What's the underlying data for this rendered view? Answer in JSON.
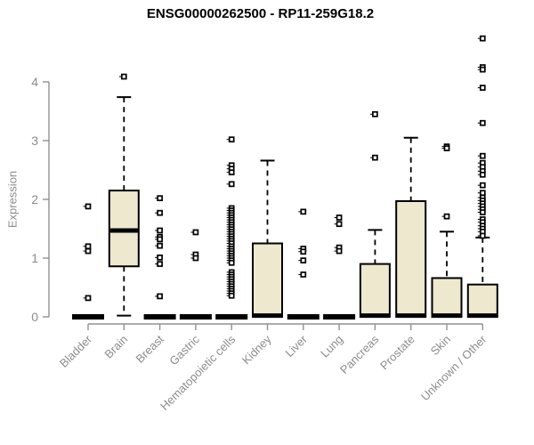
{
  "title": "ENSG00000262500 - RP11-259G18.2",
  "y_axis": {
    "label": "Expression"
  },
  "chart_data": {
    "type": "boxplot",
    "title": "ENSG00000262500 - RP11-259G18.2",
    "xlabel": "",
    "ylabel": "Expression",
    "ylim": [
      0,
      4.8
    ],
    "yticks": [
      0,
      1,
      2,
      3,
      4
    ],
    "grid": false,
    "legend": "none",
    "categories": [
      "Bladder",
      "Brain",
      "Breast",
      "Gastric",
      "Hematopoietic cells",
      "Kidney",
      "Liver",
      "Lung",
      "Pancreas",
      "Prostate",
      "Skin",
      "Unknown / Other"
    ],
    "series": [
      {
        "category": "Bladder",
        "collapsed": true,
        "q1": 0,
        "median": 0,
        "q3": 0,
        "whisker_low": 0,
        "whisker_high": 0,
        "outliers": [
          1.88,
          1.2,
          1.12,
          0.32
        ]
      },
      {
        "category": "Brain",
        "collapsed": false,
        "q1": 0.86,
        "median": 1.47,
        "q3": 2.15,
        "whisker_low": 0.02,
        "whisker_high": 3.74,
        "outliers": [
          4.09
        ]
      },
      {
        "category": "Breast",
        "collapsed": true,
        "q1": 0,
        "median": 0,
        "q3": 0,
        "whisker_low": 0,
        "whisker_high": 0,
        "outliers": [
          2.02,
          1.77,
          1.47,
          1.36,
          1.32,
          1.21,
          1.01,
          0.9,
          0.35
        ]
      },
      {
        "category": "Gastric",
        "collapsed": true,
        "q1": 0,
        "median": 0,
        "q3": 0,
        "whisker_low": 0,
        "whisker_high": 0,
        "outliers": [
          1.44,
          1.06,
          1.0
        ]
      },
      {
        "category": "Hematopoietic cells",
        "collapsed": true,
        "q1": 0,
        "median": 0,
        "q3": 0,
        "whisker_low": 0,
        "whisker_high": 0,
        "outliers": [
          3.02,
          2.58,
          2.52,
          2.46,
          2.26,
          1.85,
          1.81,
          1.77,
          1.73,
          1.69,
          1.65,
          1.61,
          1.57,
          1.53,
          1.49,
          1.45,
          1.41,
          1.37,
          1.33,
          1.29,
          1.25,
          1.2,
          1.16,
          1.12,
          1.08,
          1.04,
          1.0,
          0.96,
          0.92,
          0.76,
          0.72,
          0.68,
          0.64,
          0.6,
          0.56,
          0.52,
          0.48,
          0.44,
          0.4,
          0.36
        ]
      },
      {
        "category": "Kidney",
        "collapsed": false,
        "q1": 0,
        "median": 0.02,
        "q3": 1.25,
        "whisker_low": 0,
        "whisker_high": 2.66,
        "outliers": []
      },
      {
        "category": "Liver",
        "collapsed": true,
        "q1": 0,
        "median": 0,
        "q3": 0,
        "whisker_low": 0,
        "whisker_high": 0,
        "outliers": [
          1.79,
          1.16,
          1.11,
          0.96,
          0.72
        ]
      },
      {
        "category": "Lung",
        "collapsed": true,
        "q1": 0,
        "median": 0,
        "q3": 0,
        "whisker_low": 0,
        "whisker_high": 0,
        "outliers": [
          1.69,
          1.58,
          1.18,
          1.12
        ]
      },
      {
        "category": "Pancreas",
        "collapsed": false,
        "q1": 0,
        "median": 0.02,
        "q3": 0.9,
        "whisker_low": 0,
        "whisker_high": 1.48,
        "outliers": [
          3.45,
          2.71
        ]
      },
      {
        "category": "Prostate",
        "collapsed": false,
        "q1": 0,
        "median": 0.02,
        "q3": 1.97,
        "whisker_low": 0,
        "whisker_high": 3.05,
        "outliers": []
      },
      {
        "category": "Skin",
        "collapsed": false,
        "q1": 0,
        "median": 0.02,
        "q3": 0.66,
        "whisker_low": 0,
        "whisker_high": 1.45,
        "outliers": [
          2.9,
          2.87,
          1.71
        ]
      },
      {
        "category": "Unknown / Other",
        "collapsed": false,
        "q1": 0,
        "median": 0.02,
        "q3": 0.55,
        "whisker_low": 0,
        "whisker_high": 1.35,
        "outliers": [
          4.74,
          4.25,
          4.21,
          3.9,
          3.3,
          2.74,
          2.62,
          2.55,
          2.48,
          2.42,
          2.24,
          2.11,
          2.03,
          1.98,
          1.93,
          1.88,
          1.83,
          1.78,
          1.66,
          1.61,
          1.55,
          1.5,
          1.45,
          1.38
        ]
      }
    ],
    "colors": {
      "box_fill": "#EDE8CE",
      "box_border": "#000000",
      "median": "#000000",
      "whisker": "#000000",
      "outlier": "#000000",
      "axis_line": "#919191",
      "tick_text": "#8C8C8C",
      "title_text": "#000000",
      "background": "#FFFFFF"
    }
  }
}
